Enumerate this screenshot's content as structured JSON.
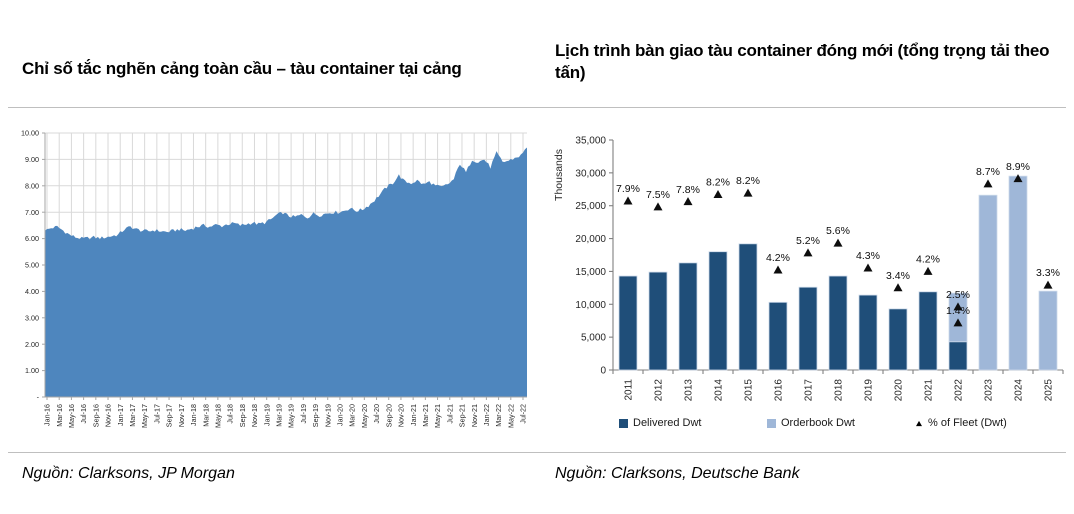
{
  "chart_data": [
    {
      "type": "area",
      "title": "Chỉ số tắc nghẽn cảng toàn cầu – tàu container tại cảng",
      "source": "Nguồn: Clarksons, JP Morgan",
      "fill_color": "#4E86BE",
      "ylim": [
        0,
        10
      ],
      "y_tick_labels": [
        "-",
        "1.00",
        "2.00",
        "3.00",
        "4.00",
        "5.00",
        "6.00",
        "7.00",
        "8.00",
        "9.00",
        "10.00"
      ],
      "x_start": "Jan-16",
      "x_end": "Aug-22",
      "x_tick_labels": [
        "Jan-16",
        "Mar-16",
        "May-16",
        "Jul-16",
        "Sep-16",
        "Nov-16",
        "Jan-17",
        "Mar-17",
        "May-17",
        "Jul-17",
        "Sep-17",
        "Nov-17",
        "Jan-18",
        "Mar-18",
        "May-18",
        "Jul-18",
        "Sep-18",
        "Nov-18",
        "Jan-19",
        "Mar-19",
        "May-19",
        "Jul-19",
        "Sep-19",
        "Nov-19",
        "Jan-20",
        "Mar-20",
        "May-20",
        "Jul-20",
        "Sep-20",
        "Nov-20",
        "Jan-21",
        "Mar-21",
        "May-21",
        "Jul-21",
        "Sep-21",
        "Nov-21",
        "Jan-22",
        "Mar-22",
        "May-22",
        "Jul-22"
      ],
      "monthly_values": [
        6.3,
        6.4,
        6.45,
        6.3,
        6.15,
        6.05,
        6.0,
        6.02,
        6.05,
        6.02,
        6.05,
        6.1,
        6.15,
        6.35,
        6.45,
        6.35,
        6.3,
        6.28,
        6.32,
        6.28,
        6.25,
        6.3,
        6.35,
        6.3,
        6.38,
        6.45,
        6.5,
        6.45,
        6.52,
        6.48,
        6.55,
        6.58,
        6.5,
        6.55,
        6.6,
        6.55,
        6.6,
        6.72,
        6.9,
        6.98,
        6.85,
        6.82,
        6.9,
        6.8,
        6.95,
        6.88,
        6.95,
        7.0,
        7.0,
        7.05,
        7.15,
        7.05,
        7.1,
        7.25,
        7.45,
        7.7,
        7.95,
        8.1,
        8.4,
        8.15,
        8.1,
        8.2,
        8.05,
        8.15,
        8.0,
        7.95,
        8.05,
        8.25,
        8.85,
        8.5,
        9.0,
        8.9,
        9.0,
        8.7,
        9.25,
        8.9,
        8.95,
        9.05,
        9.15,
        9.45
      ],
      "grid_color": "#d9d9d9"
    },
    {
      "type": "bar",
      "title": "Lịch trình bàn giao tàu container đóng mới (tổng trọng tải theo tấn)",
      "source": "Nguồn: Clarksons, Deutsche Bank",
      "ylabel": "Thousands",
      "ylim": [
        0,
        35000
      ],
      "y_ticks": [
        0,
        5000,
        10000,
        15000,
        20000,
        25000,
        30000,
        35000
      ],
      "y_tick_labels": [
        "0",
        "5,000",
        "10,000",
        "15,000",
        "20,000",
        "25,000",
        "30,000",
        "35,000"
      ],
      "categories": [
        "2011",
        "2012",
        "2013",
        "2014",
        "2015",
        "2016",
        "2017",
        "2018",
        "2019",
        "2020",
        "2021",
        "2022",
        "2023",
        "2024",
        "2025"
      ],
      "series": [
        {
          "name": "Delivered Dwt",
          "color": "#1F4E79",
          "values": [
            14300,
            14900,
            16300,
            18000,
            19200,
            10300,
            12600,
            14300,
            11400,
            9300,
            11900,
            4300,
            0,
            0,
            0
          ]
        },
        {
          "name": "Orderbook Dwt",
          "color": "#9FB7D8",
          "values": [
            0,
            0,
            0,
            0,
            0,
            0,
            0,
            0,
            0,
            0,
            0,
            7400,
            26600,
            29500,
            12000
          ]
        }
      ],
      "markers": {
        "name": "% of Fleet (Dwt)",
        "color": "#0d0d0d",
        "points": [
          {
            "category": "2011",
            "label": "7.9%",
            "y": 25700
          },
          {
            "category": "2012",
            "label": "7.5%",
            "y": 24800
          },
          {
            "category": "2013",
            "label": "7.8%",
            "y": 25600
          },
          {
            "category": "2014",
            "label": "8.2%",
            "y": 26700
          },
          {
            "category": "2015",
            "label": "8.2%",
            "y": 26900
          },
          {
            "category": "2016",
            "label": "4.2%",
            "y": 15200
          },
          {
            "category": "2017",
            "label": "5.2%",
            "y": 17800
          },
          {
            "category": "2018",
            "label": "5.6%",
            "y": 19300
          },
          {
            "category": "2019",
            "label": "4.3%",
            "y": 15500
          },
          {
            "category": "2020",
            "label": "3.4%",
            "y": 12500
          },
          {
            "category": "2021",
            "label": "4.2%",
            "y": 15000
          },
          {
            "category": "2022",
            "label": "2.5%",
            "y": 9600
          },
          {
            "category": "2022",
            "label": "1.4%",
            "y": 7150
          },
          {
            "category": "2023",
            "label": "8.7%",
            "y": 28300
          },
          {
            "category": "2024",
            "label": "8.9%",
            "y": 29100
          },
          {
            "category": "2025",
            "label": "3.3%",
            "y": 12900
          }
        ]
      },
      "legend_position": "bottom"
    }
  ]
}
